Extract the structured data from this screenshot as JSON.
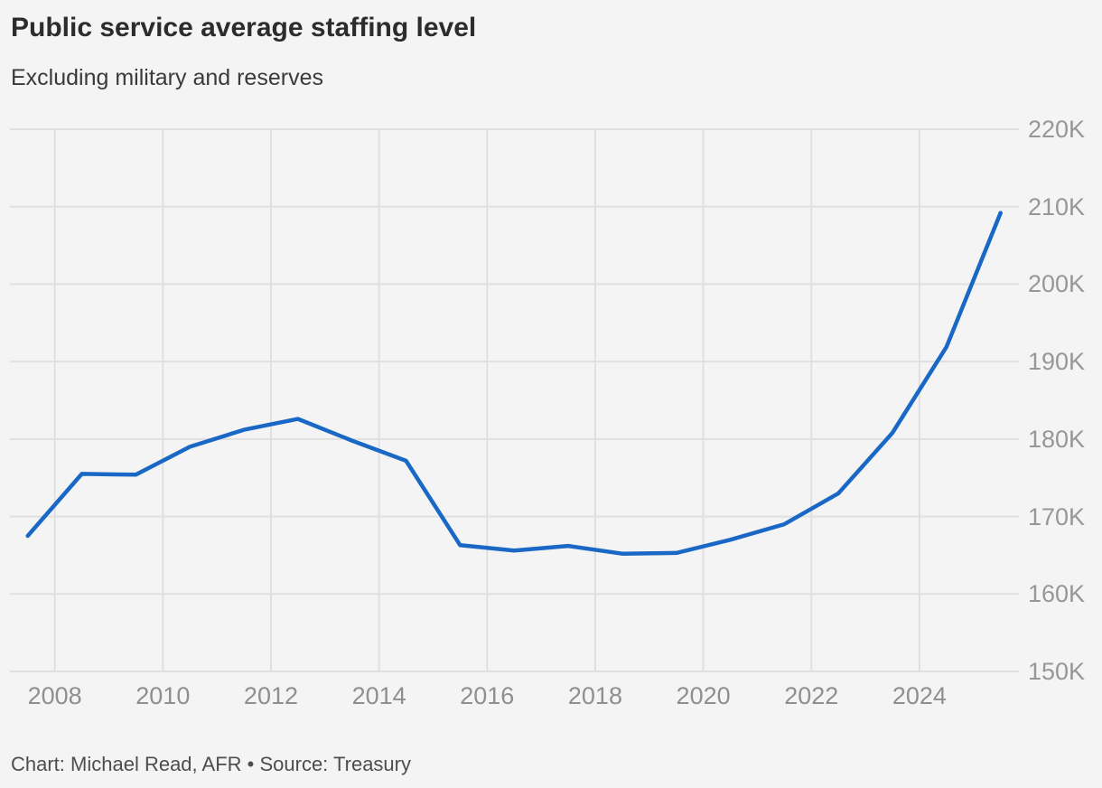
{
  "header": {
    "title": "Public service average staffing level",
    "subtitle": "Excluding military and reserves"
  },
  "footer": {
    "attribution": "Chart: Michael Read, AFR • Source: Treasury"
  },
  "colors": {
    "background": "#f4f4f4",
    "line": "#1a68c6",
    "grid": "#e0e0e0",
    "y_tick_text": "#979797",
    "x_tick_text": "#8f8f8f",
    "title_text": "#2c2c2c",
    "subtitle_text": "#3a3a3a",
    "footer_text": "#4d4d4d"
  },
  "chart_data": {
    "type": "line",
    "title": "Public service average staffing level",
    "subtitle": "Excluding military and reserves",
    "xlabel": "",
    "ylabel": "",
    "grid": true,
    "legend": false,
    "y_unit": "thousands of staff",
    "y_tick_suffix": "K",
    "y_ticks": [
      150,
      160,
      170,
      180,
      190,
      200,
      210,
      220
    ],
    "x_ticks": [
      2008,
      2010,
      2012,
      2014,
      2016,
      2018,
      2020,
      2022,
      2024
    ],
    "xlim": [
      2007.17,
      2025.84
    ],
    "ylim": [
      150,
      220
    ],
    "series": [
      {
        "name": "Average staffing level",
        "x": [
          2007.5,
          2008.5,
          2009.5,
          2010.5,
          2011.5,
          2012.5,
          2013.5,
          2014.5,
          2015.5,
          2016.5,
          2017.5,
          2018.5,
          2019.5,
          2020.5,
          2021.5,
          2022.5,
          2023.5,
          2024.5,
          2025.5
        ],
        "values": [
          167.5,
          175.5,
          175.4,
          179.0,
          181.2,
          182.6,
          179.8,
          177.2,
          166.3,
          165.6,
          166.2,
          165.2,
          165.3,
          167.0,
          169.0,
          173.0,
          180.8,
          191.9,
          209.2
        ]
      }
    ]
  }
}
